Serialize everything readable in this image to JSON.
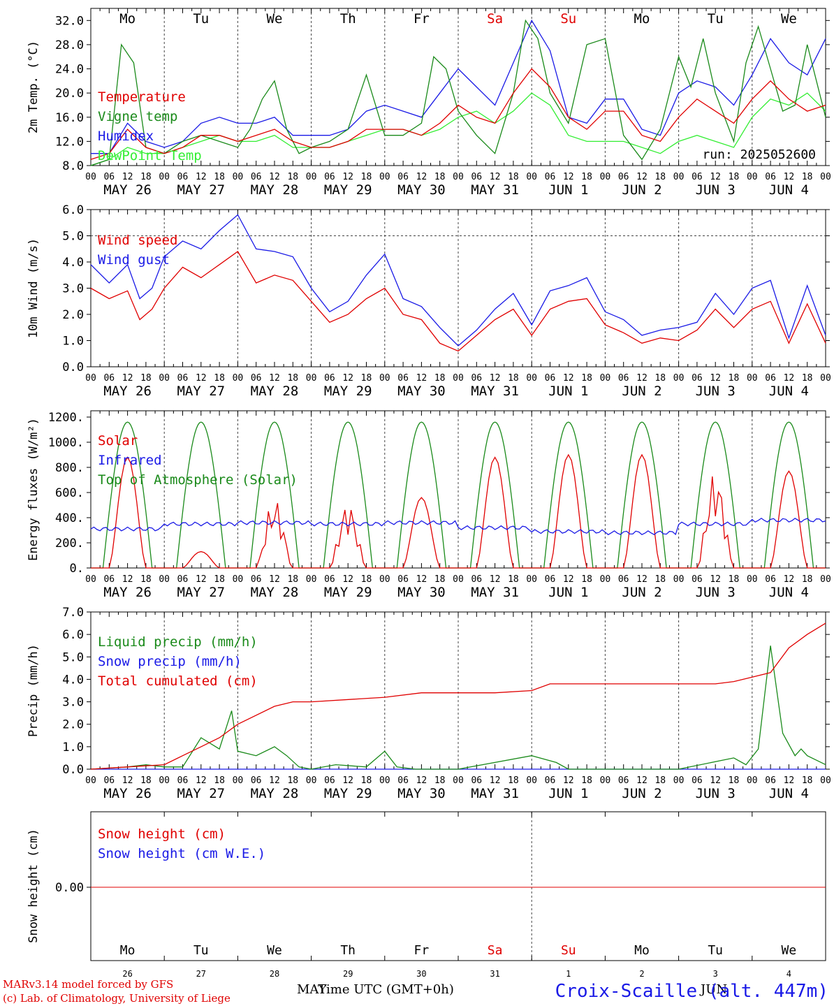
{
  "run_label": "run: 2025052600",
  "hour_ticks": [
    "00",
    "06",
    "12",
    "18"
  ],
  "day_labels": [
    "MAY 26",
    "MAY 27",
    "MAY 28",
    "MAY 29",
    "MAY 30",
    "MAY 31",
    "JUN  1",
    "JUN  2",
    "JUN  3",
    "JUN  4"
  ],
  "weekdays": [
    {
      "label": "Mo",
      "color": "#000000"
    },
    {
      "label": "Tu",
      "color": "#000000"
    },
    {
      "label": "We",
      "color": "#000000"
    },
    {
      "label": "Th",
      "color": "#000000"
    },
    {
      "label": "Fr",
      "color": "#000000"
    },
    {
      "label": "Sa",
      "color": "#e00000"
    },
    {
      "label": "Su",
      "color": "#e00000"
    },
    {
      "label": "Mo",
      "color": "#000000"
    },
    {
      "label": "Tu",
      "color": "#000000"
    },
    {
      "label": "We",
      "color": "#000000"
    }
  ],
  "bottom_day_numbers": [
    "26",
    "27",
    "28",
    "29",
    "30",
    "31",
    "1",
    "2",
    "3",
    "4"
  ],
  "bottom_month_labels": [
    "MAY",
    "JUN"
  ],
  "footer": {
    "model": "MARv3.14 model forced by GFS",
    "lab": "(c) Lab. of Climatology, University of Liege",
    "xlabel": "Time UTC (GMT+0h)",
    "site": "Croix-Scaille (alt. 447m)"
  },
  "colors": {
    "red": "#e00000",
    "green": "#1a8a1a",
    "blue": "#1a1ae6",
    "lightgreen": "#33ee33"
  },
  "chart_data": [
    {
      "type": "line",
      "ylabel": "2m Temp. (°C)",
      "ylim": [
        8,
        34
      ],
      "yticks": [
        "8.0",
        "12.0",
        "16.0",
        "20.0",
        "24.0",
        "28.0",
        "32.0"
      ],
      "ytick_values": [
        8,
        12,
        16,
        20,
        24,
        28,
        32
      ],
      "x_unit": "hours since MAY 26 00 UTC",
      "series": [
        {
          "name": "Temperature",
          "color": "#e00000",
          "x": [
            0,
            6,
            12,
            18,
            24,
            30,
            36,
            42,
            48,
            54,
            60,
            66,
            72,
            78,
            84,
            90,
            96,
            102,
            108,
            114,
            120,
            126,
            132,
            138,
            144,
            150,
            156,
            162,
            168,
            174,
            180,
            186,
            192,
            198,
            204,
            210,
            216,
            222,
            228,
            234,
            240
          ],
          "values": [
            9,
            10,
            14,
            11,
            10,
            11,
            13,
            13,
            12,
            13,
            14,
            12,
            11,
            11,
            12,
            14,
            14,
            14,
            13,
            15,
            18,
            16,
            15,
            20,
            24,
            21,
            16,
            14,
            17,
            17,
            13,
            12,
            16,
            19,
            17,
            15,
            19,
            22,
            19,
            17,
            18
          ]
        },
        {
          "name": "Vigne temp",
          "color": "#1a8a1a",
          "x": [
            0,
            6,
            10,
            14,
            18,
            24,
            30,
            36,
            42,
            48,
            52,
            56,
            60,
            64,
            68,
            72,
            78,
            84,
            90,
            96,
            102,
            108,
            112,
            116,
            120,
            126,
            132,
            138,
            142,
            146,
            150,
            156,
            162,
            168,
            174,
            180,
            186,
            192,
            196,
            200,
            204,
            210,
            214,
            218,
            222,
            226,
            230,
            234,
            240
          ],
          "values": [
            8,
            9,
            28,
            25,
            11,
            10,
            12,
            13,
            12,
            11,
            14,
            19,
            22,
            14,
            10,
            11,
            12,
            14,
            23,
            13,
            13,
            15,
            26,
            24,
            17,
            13,
            10,
            20,
            32,
            29,
            20,
            15,
            28,
            29,
            13,
            9,
            14,
            26,
            21,
            29,
            20,
            12,
            25,
            31,
            24,
            17,
            18,
            28,
            16
          ]
        },
        {
          "name": "Humidex",
          "color": "#1a1ae6",
          "x": [
            0,
            6,
            12,
            18,
            24,
            30,
            36,
            42,
            48,
            54,
            60,
            66,
            72,
            78,
            84,
            90,
            96,
            102,
            108,
            114,
            120,
            126,
            132,
            138,
            144,
            150,
            156,
            162,
            168,
            174,
            180,
            186,
            192,
            198,
            204,
            210,
            216,
            222,
            228,
            234,
            240
          ],
          "values": [
            10,
            10,
            15,
            12,
            11,
            12,
            15,
            16,
            15,
            15,
            16,
            13,
            13,
            13,
            14,
            17,
            18,
            17,
            16,
            20,
            24,
            21,
            18,
            25,
            32,
            27,
            16,
            15,
            19,
            19,
            14,
            13,
            20,
            22,
            21,
            18,
            23,
            29,
            25,
            23,
            29
          ]
        },
        {
          "name": "DewPoint Temp",
          "color": "#33ee33",
          "x": [
            0,
            6,
            12,
            18,
            24,
            30,
            36,
            42,
            48,
            54,
            60,
            66,
            72,
            78,
            84,
            90,
            96,
            102,
            108,
            114,
            120,
            126,
            132,
            138,
            144,
            150,
            156,
            162,
            168,
            174,
            180,
            186,
            192,
            198,
            204,
            210,
            216,
            222,
            228,
            234,
            240
          ],
          "values": [
            8,
            9,
            11,
            10,
            10,
            11,
            12,
            13,
            12,
            12,
            13,
            11,
            11,
            11,
            12,
            13,
            14,
            14,
            13,
            14,
            16,
            17,
            15,
            17,
            20,
            18,
            13,
            12,
            12,
            12,
            11,
            10,
            12,
            13,
            12,
            11,
            16,
            19,
            18,
            20,
            17
          ]
        }
      ]
    },
    {
      "type": "line",
      "ylabel": "10m Wind (m/s)",
      "ylim": [
        0,
        6
      ],
      "yticks": [
        "0.0",
        "1.0",
        "2.0",
        "3.0",
        "4.0",
        "5.0",
        "6.0"
      ],
      "ytick_values": [
        0,
        1,
        2,
        3,
        4,
        5,
        6
      ],
      "dashed_ref": 5,
      "series": [
        {
          "name": "Wind speed",
          "color": "#e00000",
          "x": [
            0,
            6,
            12,
            16,
            20,
            24,
            30,
            36,
            42,
            48,
            54,
            60,
            66,
            72,
            78,
            84,
            90,
            96,
            102,
            108,
            114,
            120,
            126,
            132,
            138,
            144,
            150,
            156,
            162,
            168,
            174,
            180,
            186,
            192,
            198,
            204,
            210,
            216,
            222,
            228,
            234,
            240
          ],
          "values": [
            3.0,
            2.6,
            2.9,
            1.8,
            2.2,
            3.0,
            3.8,
            3.4,
            3.9,
            4.4,
            3.2,
            3.5,
            3.3,
            2.5,
            1.7,
            2.0,
            2.6,
            3.0,
            2.0,
            1.8,
            0.9,
            0.6,
            1.2,
            1.8,
            2.2,
            1.2,
            2.2,
            2.5,
            2.6,
            1.6,
            1.3,
            0.9,
            1.1,
            1.0,
            1.4,
            2.2,
            1.5,
            2.2,
            2.5,
            0.9,
            2.4,
            0.9
          ]
        },
        {
          "name": "Wind gust",
          "color": "#1a1ae6",
          "x": [
            0,
            6,
            12,
            16,
            20,
            24,
            30,
            36,
            42,
            48,
            54,
            60,
            66,
            72,
            78,
            84,
            90,
            96,
            102,
            108,
            114,
            120,
            126,
            132,
            138,
            144,
            150,
            156,
            162,
            168,
            174,
            180,
            186,
            192,
            198,
            204,
            210,
            216,
            222,
            228,
            234,
            240
          ],
          "values": [
            3.9,
            3.2,
            3.9,
            2.6,
            3.0,
            4.2,
            4.8,
            4.5,
            5.2,
            5.8,
            4.5,
            4.4,
            4.2,
            3.0,
            2.1,
            2.5,
            3.5,
            4.3,
            2.6,
            2.3,
            1.5,
            0.8,
            1.4,
            2.2,
            2.8,
            1.6,
            2.9,
            3.1,
            3.4,
            2.1,
            1.8,
            1.2,
            1.4,
            1.5,
            1.7,
            2.8,
            2.0,
            3.0,
            3.3,
            1.1,
            3.1,
            1.2
          ]
        }
      ]
    },
    {
      "type": "line",
      "ylabel": "Energy fluxes (W/m²)",
      "ylim": [
        0,
        1250
      ],
      "yticks": [
        "0.",
        "200.",
        "400.",
        "600.",
        "800.",
        "1000.",
        "1200."
      ],
      "ytick_values": [
        0,
        200,
        400,
        600,
        800,
        1000,
        1200
      ],
      "toa_peak": 1160,
      "solar_day_peaks": [
        880,
        130,
        560,
        530,
        560,
        880,
        900,
        900,
        780,
        770
      ],
      "infrared_levels": [
        310,
        350,
        360,
        350,
        360,
        320,
        290,
        280,
        350,
        380
      ],
      "series": [
        {
          "name": "Solar",
          "color": "#e00000"
        },
        {
          "name": "Infrared",
          "color": "#1a1ae6"
        },
        {
          "name": "Top of Atmosphere (Solar)",
          "color": "#1a8a1a"
        }
      ]
    },
    {
      "type": "line",
      "ylabel": "Precip (mm/h)",
      "ylim": [
        0,
        7
      ],
      "yticks": [
        "0.0",
        "1.0",
        "2.0",
        "3.0",
        "4.0",
        "5.0",
        "6.0",
        "7.0"
      ],
      "ytick_values": [
        0,
        1,
        2,
        3,
        4,
        5,
        6,
        7
      ],
      "series": [
        {
          "name": "Liquid precip (mm/h)",
          "color": "#1a8a1a",
          "x": [
            0,
            12,
            18,
            24,
            30,
            36,
            42,
            46,
            48,
            54,
            60,
            64,
            68,
            72,
            80,
            90,
            96,
            100,
            106,
            120,
            144,
            152,
            156,
            168,
            192,
            210,
            214,
            218,
            222,
            226,
            230,
            232,
            234,
            240
          ],
          "values": [
            0,
            0.1,
            0.2,
            0.1,
            0.1,
            1.4,
            0.9,
            2.6,
            0.8,
            0.6,
            1.0,
            0.6,
            0.1,
            0,
            0.2,
            0.1,
            0.8,
            0.1,
            0,
            0,
            0.6,
            0.3,
            0,
            0,
            0,
            0.5,
            0.2,
            0.9,
            5.5,
            1.6,
            0.6,
            0.9,
            0.6,
            0.2
          ]
        },
        {
          "name": "Snow precip (mm/h)",
          "color": "#1a1ae6",
          "x": [
            0,
            240
          ],
          "values": [
            0,
            0
          ]
        },
        {
          "name": "Total cumulated (cm)",
          "color": "#e00000",
          "x": [
            0,
            12,
            24,
            30,
            36,
            42,
            48,
            60,
            66,
            72,
            96,
            108,
            120,
            132,
            144,
            150,
            168,
            192,
            204,
            210,
            216,
            222,
            228,
            234,
            240
          ],
          "values": [
            0,
            0.1,
            0.2,
            0.6,
            1.0,
            1.4,
            2.0,
            2.8,
            3.0,
            3.0,
            3.2,
            3.4,
            3.4,
            3.4,
            3.5,
            3.8,
            3.8,
            3.8,
            3.8,
            3.9,
            4.1,
            4.3,
            5.4,
            6.0,
            6.5
          ]
        }
      ]
    },
    {
      "type": "line",
      "ylabel": "Snow height (cm)",
      "yticks": [
        "0.00"
      ],
      "series": [
        {
          "name": "Snow height (cm)",
          "color": "#e00000",
          "x": [
            0,
            240
          ],
          "values": [
            0,
            0
          ]
        },
        {
          "name": "Snow height (cm W.E.)",
          "color": "#1a1ae6",
          "x": [
            0,
            240
          ],
          "values": [
            0,
            0
          ]
        }
      ]
    }
  ]
}
